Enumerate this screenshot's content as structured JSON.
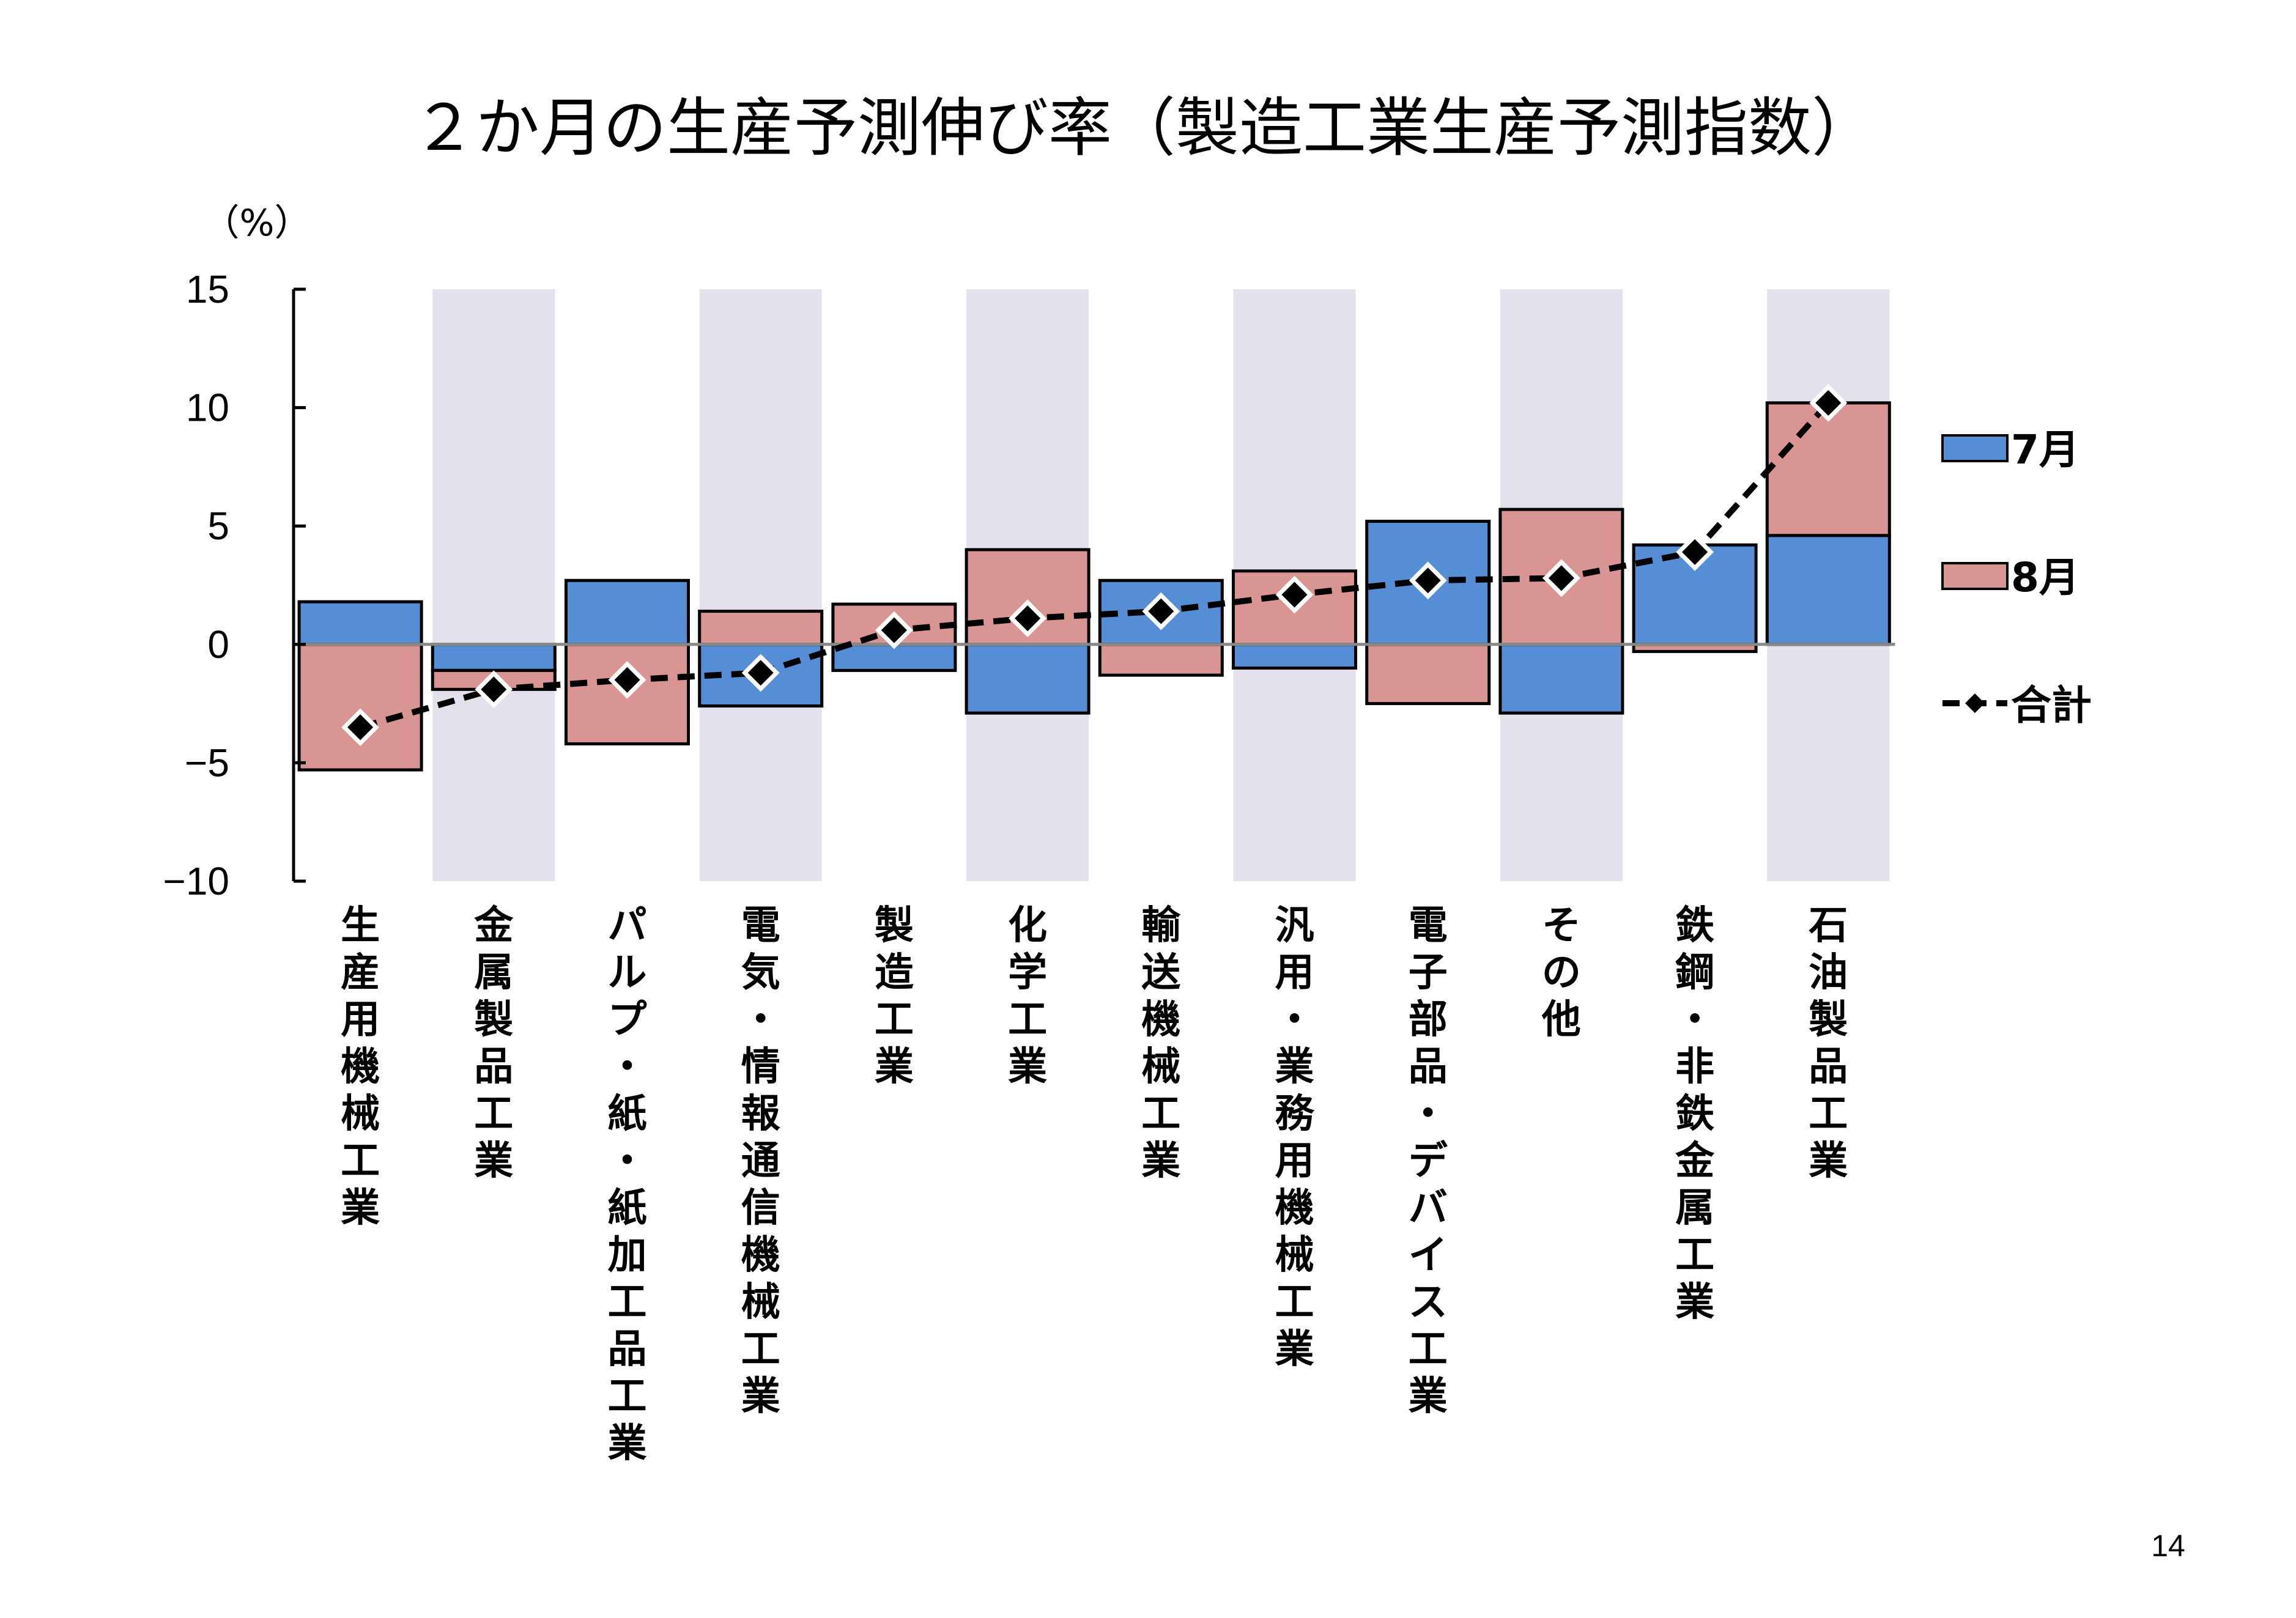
{
  "page": {
    "title": "２か月の生産予測伸び率（製造工業生産予測指数）",
    "page_number": "14"
  },
  "chart_data": {
    "type": "bar",
    "subtype": "stacked-bar-with-line",
    "title": "２か月の生産予測伸び率（製造工業生産予測指数）",
    "xlabel": "",
    "ylabel": "（%）",
    "ylim": [
      -10,
      15
    ],
    "yticks": [
      15,
      10,
      5,
      0,
      -5,
      -10
    ],
    "ytick_labels": [
      "15",
      "10",
      "5",
      "0",
      "−5",
      "−10"
    ],
    "grid": false,
    "legend_position": "right",
    "alternating_band_shading": true,
    "categories": [
      "生産用機械工業",
      "金属製品工業",
      "パルプ・紙・紙加工品工業",
      "電気・情報通信機械工業",
      "製造工業",
      "化学工業",
      "輸送機械工業",
      "汎用・業務用機械工業",
      "電子部品・デバイス工業",
      "その他",
      "鉄鋼・非鉄金属工業",
      "石油製品工業"
    ],
    "series": [
      {
        "name": "7月",
        "kind": "bar",
        "color": "#558ed5",
        "values": [
          1.8,
          -1.1,
          2.7,
          -2.6,
          -1.1,
          -2.9,
          2.7,
          -1.0,
          5.2,
          -2.9,
          4.2,
          4.6
        ]
      },
      {
        "name": "8月",
        "kind": "bar",
        "color": "#d99594",
        "values": [
          -5.3,
          -0.8,
          -4.2,
          1.4,
          1.7,
          4.0,
          -1.3,
          3.1,
          -2.5,
          5.7,
          -0.3,
          5.6
        ]
      },
      {
        "name": "合計",
        "kind": "line",
        "style": "dashed",
        "marker": "diamond",
        "color": "#000000",
        "values": [
          -3.5,
          -1.9,
          -1.5,
          -1.2,
          0.6,
          1.1,
          1.4,
          2.1,
          2.7,
          2.8,
          3.9,
          10.2
        ]
      }
    ],
    "colors": {
      "band": "#e4e0ec",
      "zero_line": "#888888",
      "axis": "#000000"
    }
  }
}
